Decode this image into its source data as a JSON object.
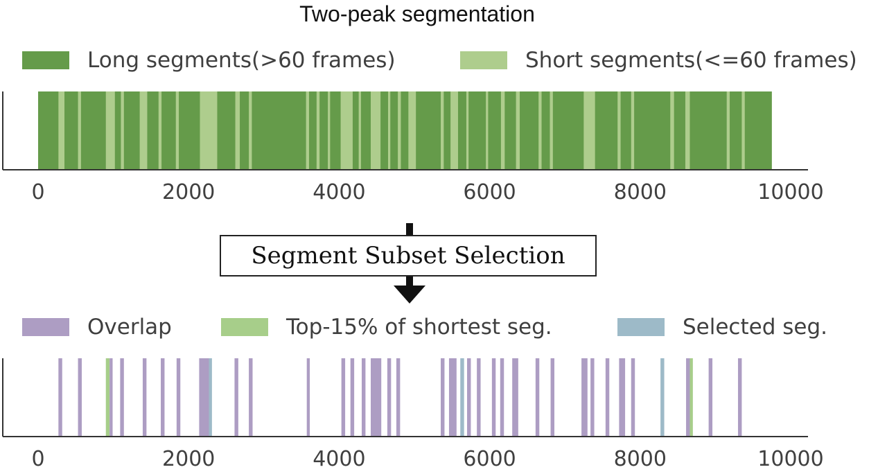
{
  "chart_data": [
    {
      "type": "bar",
      "title": "Two-peak segmentation",
      "xlim": [
        0,
        10000
      ],
      "ticks": [
        0,
        2000,
        4000,
        6000,
        8000,
        10000
      ],
      "legend": [
        {
          "label": "Long segments(>60 frames)",
          "color": "#659b4a"
        },
        {
          "label": "Short segments(<=60 frames)",
          "color": "#aecd8d"
        }
      ],
      "background_series": {
        "name": "Long segments(>60 frames)",
        "x_range": [
          0,
          9750
        ],
        "color": "#659b4a"
      },
      "short_segments": [
        {
          "start": 270,
          "end": 350
        },
        {
          "start": 530,
          "end": 570
        },
        {
          "start": 900,
          "end": 1020
        },
        {
          "start": 1100,
          "end": 1140
        },
        {
          "start": 1350,
          "end": 1450
        },
        {
          "start": 1600,
          "end": 1640
        },
        {
          "start": 1830,
          "end": 1870
        },
        {
          "start": 2150,
          "end": 2380
        },
        {
          "start": 2620,
          "end": 2680
        },
        {
          "start": 2800,
          "end": 2840
        },
        {
          "start": 3560,
          "end": 3600
        },
        {
          "start": 3700,
          "end": 3740
        },
        {
          "start": 3850,
          "end": 3880
        },
        {
          "start": 4020,
          "end": 4180
        },
        {
          "start": 4260,
          "end": 4290
        },
        {
          "start": 4420,
          "end": 4550
        },
        {
          "start": 4650,
          "end": 4680
        },
        {
          "start": 4780,
          "end": 4820
        },
        {
          "start": 4920,
          "end": 5020
        },
        {
          "start": 5350,
          "end": 5390
        },
        {
          "start": 5480,
          "end": 5580
        },
        {
          "start": 5690,
          "end": 5720
        },
        {
          "start": 5950,
          "end": 5980
        },
        {
          "start": 6150,
          "end": 6200
        },
        {
          "start": 6350,
          "end": 6400
        },
        {
          "start": 6650,
          "end": 6690
        },
        {
          "start": 6800,
          "end": 6840
        },
        {
          "start": 7250,
          "end": 7400
        },
        {
          "start": 7700,
          "end": 7740
        },
        {
          "start": 7880,
          "end": 7920
        },
        {
          "start": 8400,
          "end": 8450
        },
        {
          "start": 8600,
          "end": 8660
        },
        {
          "start": 9150,
          "end": 9190
        },
        {
          "start": 9350,
          "end": 9390
        }
      ]
    },
    {
      "type": "bar",
      "title": "",
      "xlim": [
        0,
        10000
      ],
      "ticks": [
        0,
        2000,
        4000,
        6000,
        8000,
        10000
      ],
      "legend": [
        {
          "label": "Overlap",
          "color": "#ad9dc3"
        },
        {
          "label": "Top-15% of shortest seg.",
          "color": "#a7ce8a"
        },
        {
          "label": "Selected seg.",
          "color": "#9dbac8"
        }
      ],
      "segments": [
        {
          "start": 270,
          "end": 320,
          "series": "Overlap"
        },
        {
          "start": 530,
          "end": 580,
          "series": "Overlap"
        },
        {
          "start": 900,
          "end": 950,
          "series": "Top-15% of shortest seg."
        },
        {
          "start": 950,
          "end": 990,
          "series": "Overlap"
        },
        {
          "start": 1090,
          "end": 1140,
          "series": "Overlap"
        },
        {
          "start": 1390,
          "end": 1440,
          "series": "Overlap"
        },
        {
          "start": 1630,
          "end": 1680,
          "series": "Overlap"
        },
        {
          "start": 1840,
          "end": 1890,
          "series": "Overlap"
        },
        {
          "start": 2140,
          "end": 2270,
          "series": "Overlap"
        },
        {
          "start": 2270,
          "end": 2310,
          "series": "Selected seg."
        },
        {
          "start": 2610,
          "end": 2660,
          "series": "Overlap"
        },
        {
          "start": 2800,
          "end": 2850,
          "series": "Overlap"
        },
        {
          "start": 3570,
          "end": 3610,
          "series": "Overlap"
        },
        {
          "start": 4030,
          "end": 4080,
          "series": "Overlap"
        },
        {
          "start": 4150,
          "end": 4200,
          "series": "Overlap"
        },
        {
          "start": 4300,
          "end": 4350,
          "series": "Overlap"
        },
        {
          "start": 4420,
          "end": 4560,
          "series": "Overlap"
        },
        {
          "start": 4640,
          "end": 4690,
          "series": "Overlap"
        },
        {
          "start": 4760,
          "end": 4810,
          "series": "Overlap"
        },
        {
          "start": 5350,
          "end": 5400,
          "series": "Overlap"
        },
        {
          "start": 5460,
          "end": 5560,
          "series": "Overlap"
        },
        {
          "start": 5610,
          "end": 5660,
          "series": "Selected seg."
        },
        {
          "start": 5700,
          "end": 5750,
          "series": "Overlap"
        },
        {
          "start": 5830,
          "end": 5880,
          "series": "Overlap"
        },
        {
          "start": 6030,
          "end": 6080,
          "series": "Overlap"
        },
        {
          "start": 6140,
          "end": 6190,
          "series": "Overlap"
        },
        {
          "start": 6300,
          "end": 6380,
          "series": "Overlap"
        },
        {
          "start": 6610,
          "end": 6660,
          "series": "Overlap"
        },
        {
          "start": 6810,
          "end": 6860,
          "series": "Overlap"
        },
        {
          "start": 7220,
          "end": 7300,
          "series": "Overlap"
        },
        {
          "start": 7340,
          "end": 7390,
          "series": "Overlap"
        },
        {
          "start": 7540,
          "end": 7590,
          "series": "Overlap"
        },
        {
          "start": 7720,
          "end": 7800,
          "series": "Overlap"
        },
        {
          "start": 7880,
          "end": 7930,
          "series": "Overlap"
        },
        {
          "start": 8270,
          "end": 8320,
          "series": "Selected seg."
        },
        {
          "start": 8610,
          "end": 8660,
          "series": "Overlap"
        },
        {
          "start": 8660,
          "end": 8700,
          "series": "Top-15% of shortest seg."
        },
        {
          "start": 8910,
          "end": 8960,
          "series": "Overlap"
        },
        {
          "start": 9300,
          "end": 9350,
          "series": "Overlap"
        }
      ]
    }
  ],
  "flow": {
    "step_label": "Segment Subset Selection"
  }
}
